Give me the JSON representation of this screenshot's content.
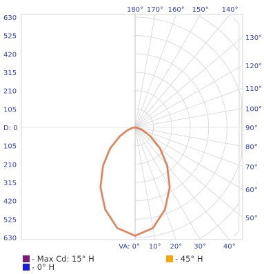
{
  "chart_data": {
    "type": "polar-photometric",
    "y_ticks_top": [
      "630",
      "525",
      "420",
      "315",
      "210",
      "105"
    ],
    "center_label": "D: 0",
    "y_ticks_bottom": [
      "105",
      "210",
      "315",
      "420",
      "525",
      "630"
    ],
    "va_label": "VA: 0°",
    "top_angle_labels": [
      "180°",
      "170°",
      "160°",
      "150°",
      "140°"
    ],
    "right_angle_labels": [
      "130°",
      "120°",
      "110°",
      "100°",
      "90°",
      "80°",
      "70°",
      "60°",
      "50°"
    ],
    "bottom_angle_labels": [
      "10°",
      "20°",
      "30°",
      "40°"
    ],
    "rlim": [
      0,
      630
    ],
    "ring_step": 105,
    "spoke_step_deg": 10,
    "curve": {
      "va_deg": [
        0,
        10,
        20,
        30,
        40,
        50,
        60,
        70,
        80,
        90
      ],
      "candela": [
        620,
        585,
        500,
        395,
        285,
        185,
        100,
        45,
        12,
        0
      ],
      "color": "#e0824a"
    },
    "legend": [
      {
        "label": "- Max Cd: 15° H",
        "color": "#7b1a7b"
      },
      {
        "label": "- 45° H",
        "color": "#ffa500"
      },
      {
        "label": "- 0° H",
        "color": "#1a1ae6"
      }
    ]
  }
}
